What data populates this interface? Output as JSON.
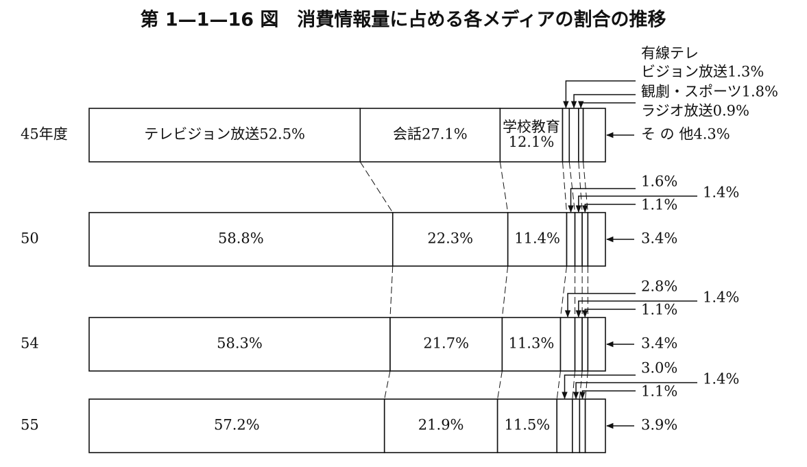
{
  "chart_data": {
    "type": "stacked-bar-horizontal",
    "title": "第 1—1—16 図　消費情報量に占める各メディアの割合の推移",
    "categories": [
      "45年度",
      "50",
      "54",
      "55"
    ],
    "xlim": [
      0,
      100
    ],
    "series": [
      {
        "color": "#ffffff",
        "values": [
          52.5,
          58.8,
          58.3,
          57.2
        ],
        "value_labels": [
          "テレビジョン放送52.5%",
          "58.8%",
          "58.3%",
          "57.2%"
        ]
      },
      {
        "color": "#ffffff",
        "values": [
          27.1,
          22.3,
          21.7,
          21.9
        ],
        "value_labels": [
          "会話27.1%",
          "22.3%",
          "21.7%",
          "21.9%"
        ]
      },
      {
        "color": "#ffffff",
        "values": [
          12.1,
          11.4,
          11.3,
          11.5
        ],
        "value_labels": [
          "学校教育\n12.1%",
          "11.4%",
          "11.3%",
          "11.5%"
        ]
      },
      {
        "color": "#ffffff",
        "values": [
          1.3,
          1.6,
          2.8,
          3.0
        ],
        "value_labels": [
          "有線テレ\nビジョン放送1.3%",
          "1.6%",
          "2.8%",
          "3.0%"
        ]
      },
      {
        "color": "#ffffff",
        "values": [
          1.8,
          1.4,
          1.4,
          1.4
        ],
        "value_labels": [
          "観劇・スポーツ1.8%",
          "1.4%",
          "1.4%",
          "1.4%"
        ]
      },
      {
        "color": "#ffffff",
        "values": [
          0.9,
          1.1,
          1.1,
          1.1
        ],
        "value_labels": [
          "ラジオ放送0.9%",
          "1.1%",
          "1.1%",
          "1.1%"
        ]
      },
      {
        "color": "#ffffff",
        "values": [
          4.3,
          3.4,
          3.4,
          3.9
        ],
        "value_labels": [
          "そ の 他4.3%",
          "3.4%",
          "3.4%",
          "3.9%"
        ]
      }
    ]
  }
}
